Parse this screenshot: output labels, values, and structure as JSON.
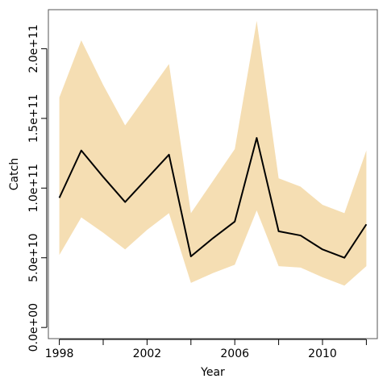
{
  "chart_data": {
    "type": "area",
    "title": "",
    "xlabel": "Year",
    "ylabel": "Catch",
    "xlim": [
      1997.5,
      2012.5
    ],
    "ylim": [
      -8000000000,
      228000000000
    ],
    "x_ticks": [
      1998,
      2002,
      2006,
      2010
    ],
    "x_minor_ticks": [
      1998,
      2000,
      2002,
      2004,
      2006,
      2008,
      2010,
      2012
    ],
    "y_ticks": [
      0,
      50000000000,
      100000000000,
      150000000000,
      200000000000
    ],
    "y_tick_labels": [
      "0.0e+00",
      "5.0e+10",
      "1.0e+11",
      "1.5e+11",
      "2.0e+11"
    ],
    "colors": {
      "band": "#F5DEB3",
      "line": "#000000",
      "frame": "#555555"
    },
    "x": [
      1998,
      1999,
      2000,
      2001,
      2002,
      2003,
      2004,
      2005,
      2006,
      2007,
      2008,
      2009,
      2010,
      2011,
      2012
    ],
    "series": [
      {
        "role": "upper",
        "values": [
          165000000000,
          206000000000,
          174000000000,
          145000000000,
          167000000000,
          189000000000,
          82000000000,
          105000000000,
          128000000000,
          220000000000,
          107000000000,
          101000000000,
          88000000000,
          82000000000,
          127000000000
        ]
      },
      {
        "role": "estimate",
        "values": [
          93000000000,
          127000000000,
          108000000000,
          90000000000,
          107000000000,
          124000000000,
          51000000000,
          64000000000,
          76000000000,
          136000000000,
          69000000000,
          66000000000,
          56000000000,
          50000000000,
          74000000000
        ]
      },
      {
        "role": "lower",
        "values": [
          52000000000,
          79000000000,
          68000000000,
          56000000000,
          70000000000,
          82000000000,
          32000000000,
          39000000000,
          45000000000,
          84000000000,
          44000000000,
          43000000000,
          36000000000,
          30000000000,
          44000000000
        ]
      }
    ]
  }
}
